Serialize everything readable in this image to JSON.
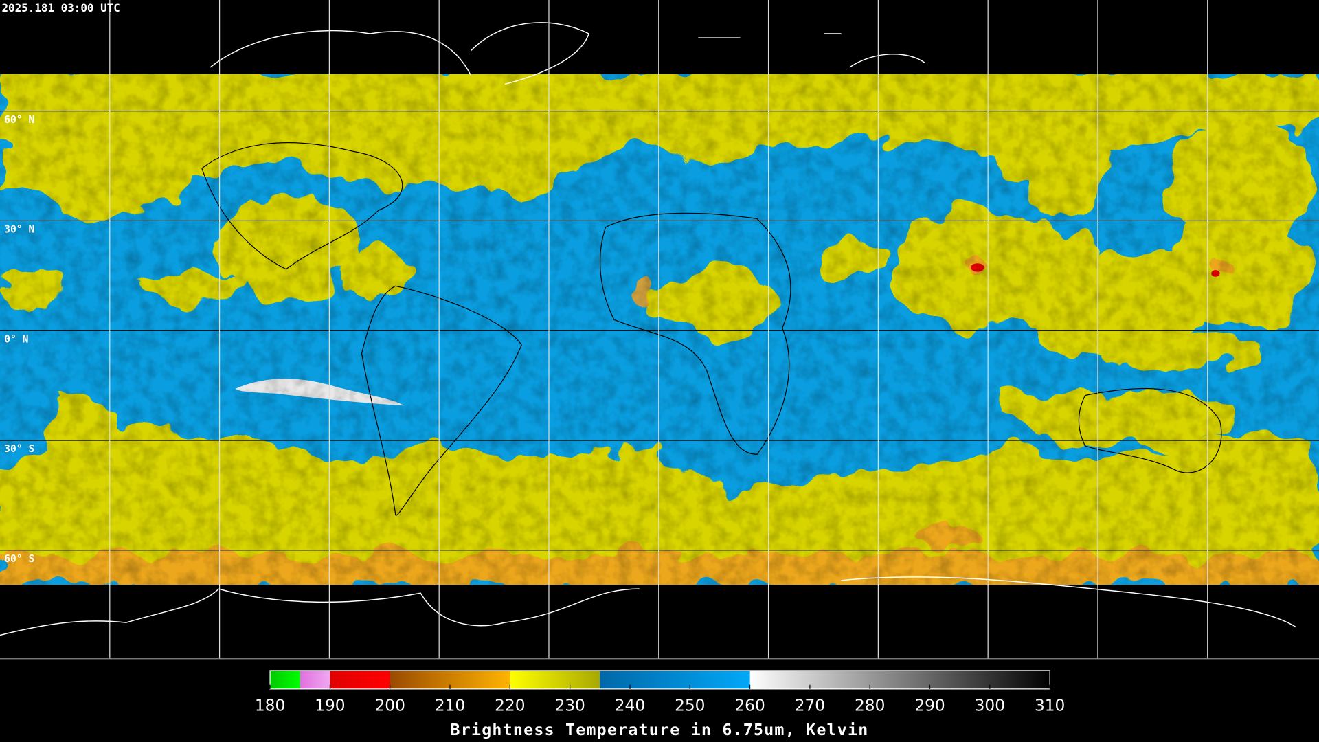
{
  "timestamp": "2025.181 03:00 UTC",
  "latitude_labels": [
    "60° N",
    "30° N",
    "0° N",
    "30° S",
    "60° S"
  ],
  "colorbar": {
    "label": "Brightness Temperature in 6.75um, Kelvin",
    "range": [
      180,
      310
    ],
    "ticks": [
      180,
      190,
      200,
      210,
      220,
      230,
      240,
      250,
      260,
      270,
      280,
      290,
      300,
      310
    ],
    "segments": [
      {
        "from": 180,
        "to": 185,
        "colors": [
          "#00c800",
          "#00ff00"
        ]
      },
      {
        "from": 185,
        "to": 190,
        "colors": [
          "#e070e0",
          "#f0a8f0"
        ]
      },
      {
        "from": 190,
        "to": 200,
        "colors": [
          "#e00000",
          "#ff0000"
        ]
      },
      {
        "from": 200,
        "to": 220,
        "colors": [
          "#9a4a00",
          "#ffb400"
        ]
      },
      {
        "from": 220,
        "to": 235,
        "colors": [
          "#ffff00",
          "#a8a800"
        ]
      },
      {
        "from": 235,
        "to": 260,
        "colors": [
          "#0068a8",
          "#00a8f8"
        ]
      },
      {
        "from": 260,
        "to": 310,
        "colors": [
          "#ffffff",
          "#000000"
        ]
      }
    ]
  }
}
